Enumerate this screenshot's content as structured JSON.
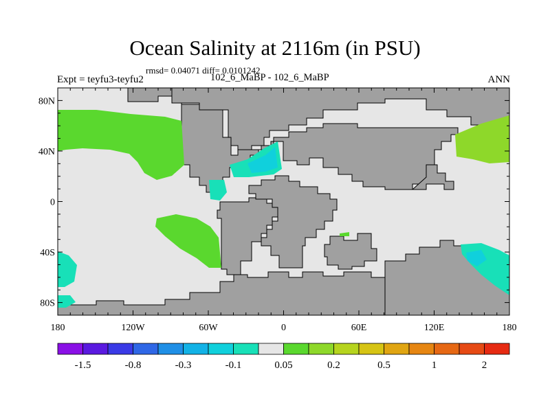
{
  "figure": {
    "title": "Ocean Salinity at 2116m (in PSU)",
    "stats_line": "rmsd= 0.04071 diff= 0.0101242",
    "experiment_label": "Expt = teyfu3-teyfu2",
    "subtitle": "102_6_MaBP - 102_6_MaBP",
    "season": "ANN"
  },
  "map": {
    "lat_ticks": [
      "80N",
      "40N",
      "0",
      "40S",
      "80S"
    ],
    "lon_ticks": [
      "180",
      "120W",
      "60W",
      "0",
      "60E",
      "120E",
      "180"
    ],
    "land_color": "#a0a0a0",
    "ocean_neutral_color": "#e6e6e6",
    "coast_color": "#000000"
  },
  "colorbar": {
    "colors": [
      "#8a10e6",
      "#5a1ae0",
      "#3a3ae6",
      "#2f67e6",
      "#1f8fe6",
      "#12b2e6",
      "#10d0dc",
      "#18e0b8",
      "#e6e6e6",
      "#5ad82e",
      "#8ed82a",
      "#b6d41e",
      "#d6c414",
      "#e0a512",
      "#e68612",
      "#e66814",
      "#e64a14",
      "#e62a12"
    ],
    "labels": [
      "-1.5",
      "-0.8",
      "-0.3",
      "-0.1",
      "0.05",
      "0.2",
      "0.5",
      "1",
      "2"
    ]
  }
}
